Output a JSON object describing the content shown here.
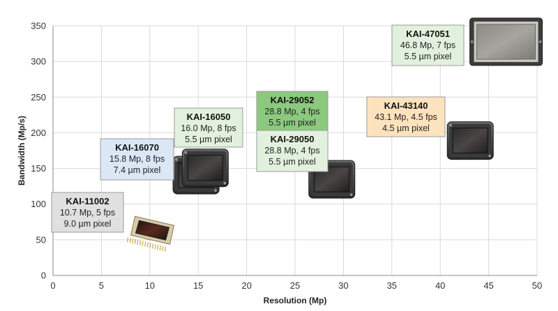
{
  "chart_data": {
    "type": "scatter",
    "xlabel": "Resolution (Mp)",
    "ylabel": "Bandwidth (Mp/s)",
    "xlim": [
      0,
      50
    ],
    "ylim": [
      0,
      350
    ],
    "xticks": [
      "0",
      "5",
      "10",
      "15",
      "20",
      "25",
      "30",
      "35",
      "40",
      "45",
      "50"
    ],
    "yticks": [
      "0",
      "50",
      "100",
      "150",
      "200",
      "250",
      "300",
      "350"
    ],
    "grid": true,
    "points": [
      {
        "name": "KAI-11002",
        "x": 10.7,
        "y": 53.5,
        "line1": "10.7 Mp, 5 fps",
        "line2": "9.0 µm pixel",
        "color": "#e0e0e0",
        "package": "ceramic-pga"
      },
      {
        "name": "KAI-16070",
        "x": 15.8,
        "y": 126.4,
        "line1": "15.8 Mp, 8 fps",
        "line2": "7.4 µm pixel",
        "color": "#dbe7f5",
        "package": "cavity"
      },
      {
        "name": "KAI-16050",
        "x": 16.0,
        "y": 128,
        "line1": "16.0 Mp, 8 fps",
        "line2": "5.5 µm pixel",
        "color": "#e2f1de",
        "package": "cavity"
      },
      {
        "name": "KAI-29052",
        "x": 28.8,
        "y": 115.2,
        "line1": "28.8 Mp, 4 fps",
        "line2": "5.5 µm pixel",
        "color": "#8cc97f",
        "package": "cavity"
      },
      {
        "name": "KAI-29050",
        "x": 28.8,
        "y": 115.2,
        "line1": "28.8 Mp, 4 fps",
        "line2": "5.5 µm pixel",
        "color": "#e2f1de",
        "package": "cavity"
      },
      {
        "name": "KAI-43140",
        "x": 43.1,
        "y": 194,
        "line1": "43.1 Mp, 4.5 fps",
        "line2": "4.5 µm pixel",
        "color": "#fde3bd",
        "package": "cavity"
      },
      {
        "name": "KAI-47051",
        "x": 46.8,
        "y": 327.6,
        "line1": "46.8 Mp, 7 fps",
        "line2": "5.5 µm pixel",
        "color": "#e2f1de",
        "package": "large"
      }
    ]
  }
}
